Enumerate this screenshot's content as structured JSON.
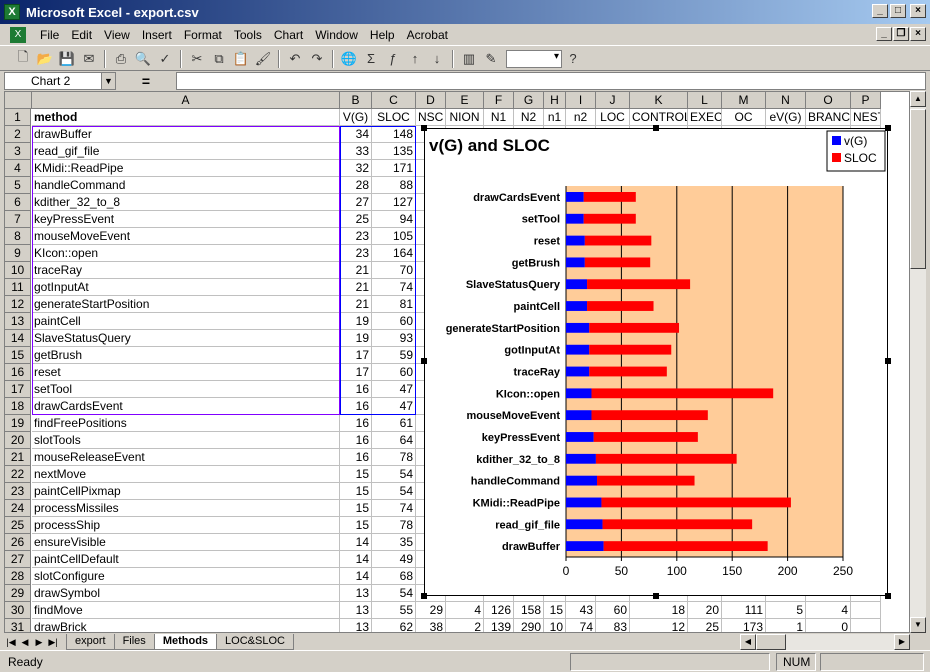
{
  "window": {
    "title": "Microsoft Excel - export.csv",
    "app_icon": "excel-icon"
  },
  "menu": [
    "File",
    "Edit",
    "View",
    "Insert",
    "Format",
    "Tools",
    "Chart",
    "Window",
    "Help",
    "Acrobat"
  ],
  "formula_bar": {
    "name_box": "Chart 2",
    "equals": "="
  },
  "columns": [
    {
      "letter": "A",
      "header": "method"
    },
    {
      "letter": "B",
      "header": "V(G)"
    },
    {
      "letter": "C",
      "header": "SLOC"
    },
    {
      "letter": "D",
      "header": "NSC"
    },
    {
      "letter": "E",
      "header": "NION"
    },
    {
      "letter": "F",
      "header": "N1"
    },
    {
      "letter": "G",
      "header": "N2"
    },
    {
      "letter": "H",
      "header": "n1"
    },
    {
      "letter": "I",
      "header": "n2"
    },
    {
      "letter": "J",
      "header": "LOC"
    },
    {
      "letter": "K",
      "header": "CONTROL"
    },
    {
      "letter": "L",
      "header": "EXEC"
    },
    {
      "letter": "M",
      "header": "OC"
    },
    {
      "letter": "N",
      "header": "eV(G)"
    },
    {
      "letter": "O",
      "header": "BRANCH"
    },
    {
      "letter": "P",
      "header": "NEST"
    }
  ],
  "rows": [
    {
      "n": "2",
      "method": "drawBuffer",
      "vg": "34",
      "sloc": "148"
    },
    {
      "n": "3",
      "method": "read_gif_file",
      "vg": "33",
      "sloc": "135"
    },
    {
      "n": "4",
      "method": "KMidi::ReadPipe",
      "vg": "32",
      "sloc": "171"
    },
    {
      "n": "5",
      "method": "handleCommand",
      "vg": "28",
      "sloc": "88"
    },
    {
      "n": "6",
      "method": "kdither_32_to_8",
      "vg": "27",
      "sloc": "127"
    },
    {
      "n": "7",
      "method": "keyPressEvent",
      "vg": "25",
      "sloc": "94"
    },
    {
      "n": "8",
      "method": "mouseMoveEvent",
      "vg": "23",
      "sloc": "105"
    },
    {
      "n": "9",
      "method": "KIcon::open",
      "vg": "23",
      "sloc": "164"
    },
    {
      "n": "10",
      "method": "traceRay",
      "vg": "21",
      "sloc": "70"
    },
    {
      "n": "11",
      "method": "gotInputAt",
      "vg": "21",
      "sloc": "74"
    },
    {
      "n": "12",
      "method": "generateStartPosition",
      "vg": "21",
      "sloc": "81"
    },
    {
      "n": "13",
      "method": "paintCell",
      "vg": "19",
      "sloc": "60"
    },
    {
      "n": "14",
      "method": "SlaveStatusQuery",
      "vg": "19",
      "sloc": "93"
    },
    {
      "n": "15",
      "method": "getBrush",
      "vg": "17",
      "sloc": "59"
    },
    {
      "n": "16",
      "method": "reset",
      "vg": "17",
      "sloc": "60"
    },
    {
      "n": "17",
      "method": "setTool",
      "vg": "16",
      "sloc": "47"
    },
    {
      "n": "18",
      "method": "drawCardsEvent",
      "vg": "16",
      "sloc": "47"
    },
    {
      "n": "19",
      "method": "findFreePositions",
      "vg": "16",
      "sloc": "61"
    },
    {
      "n": "20",
      "method": "slotTools",
      "vg": "16",
      "sloc": "64"
    },
    {
      "n": "21",
      "method": "mouseReleaseEvent",
      "vg": "16",
      "sloc": "78"
    },
    {
      "n": "22",
      "method": "nextMove",
      "vg": "15",
      "sloc": "54"
    },
    {
      "n": "23",
      "method": "paintCellPixmap",
      "vg": "15",
      "sloc": "54"
    },
    {
      "n": "24",
      "method": "processMissiles",
      "vg": "15",
      "sloc": "74"
    },
    {
      "n": "25",
      "method": "processShip",
      "vg": "15",
      "sloc": "78"
    },
    {
      "n": "26",
      "method": "ensureVisible",
      "vg": "14",
      "sloc": "35"
    },
    {
      "n": "27",
      "method": "paintCellDefault",
      "vg": "14",
      "sloc": "49"
    },
    {
      "n": "28",
      "method": "slotConfigure",
      "vg": "14",
      "sloc": "68"
    },
    {
      "n": "29",
      "method": "drawSymbol",
      "vg": "13",
      "sloc": "54"
    },
    {
      "n": "30",
      "method": "findMove",
      "vg": "13",
      "sloc": "55",
      "extra": [
        "29",
        "4",
        "126",
        "158",
        "15",
        "43",
        "60",
        "18",
        "20",
        "111",
        "5",
        "4"
      ]
    },
    {
      "n": "31",
      "method": "drawBrick",
      "vg": "13",
      "sloc": "62",
      "extra": [
        "38",
        "2",
        "139",
        "290",
        "10",
        "74",
        "83",
        "12",
        "25",
        "173",
        "1",
        "0"
      ]
    }
  ],
  "row1_label": "1",
  "chart_data": {
    "type": "bar",
    "orientation": "horizontal",
    "stacked": true,
    "title": "v(G) and SLOC",
    "categories": [
      "drawCardsEvent",
      "setTool",
      "reset",
      "getBrush",
      "SlaveStatusQuery",
      "paintCell",
      "generateStartPosition",
      "gotInputAt",
      "traceRay",
      "KIcon::open",
      "mouseMoveEvent",
      "keyPressEvent",
      "kdither_32_to_8",
      "handleCommand",
      "KMidi::ReadPipe",
      "read_gif_file",
      "drawBuffer"
    ],
    "series": [
      {
        "name": "v(G)",
        "color": "#0000ff",
        "values": [
          16,
          16,
          17,
          17,
          19,
          19,
          21,
          21,
          21,
          23,
          23,
          25,
          27,
          28,
          32,
          33,
          34
        ]
      },
      {
        "name": "SLOC",
        "color": "#ff0000",
        "values": [
          47,
          47,
          60,
          59,
          93,
          60,
          81,
          74,
          70,
          164,
          105,
          94,
          127,
          88,
          171,
          135,
          148
        ]
      }
    ],
    "xlim": [
      0,
      250
    ],
    "xticks": [
      "0",
      "50",
      "100",
      "150",
      "200",
      "250"
    ],
    "plot_background": "#ffcc99",
    "legend": "top-right",
    "grid": true
  },
  "tabs": [
    {
      "label": "export",
      "active": false
    },
    {
      "label": "Files",
      "active": false
    },
    {
      "label": "Methods",
      "active": true
    },
    {
      "label": "LOC&SLOC",
      "active": false
    }
  ],
  "status": {
    "left": "Ready",
    "num": "NUM"
  }
}
